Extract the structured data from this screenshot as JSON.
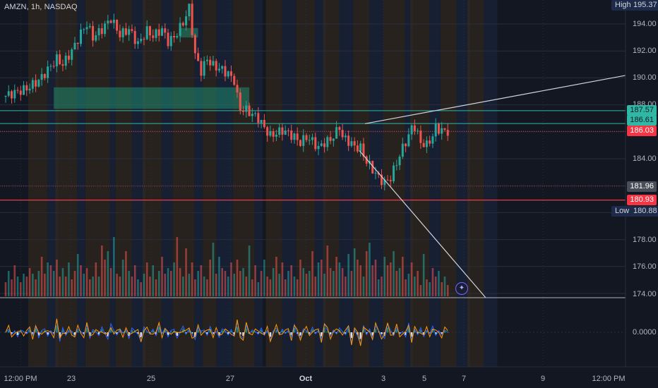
{
  "header": {
    "symbol_line": "AMZN, 1h, NASDAQ"
  },
  "colors": {
    "background": "#131722",
    "up": "#26a69a",
    "down": "#ef5350",
    "session_orange": "#3a2c1c",
    "session_blue": "#1a2540",
    "gridline": "#2a2e39",
    "trendline": "#d1d4dc",
    "hline_teal": "#2fb8a6",
    "hline_red": "#f23645",
    "zone_fill": "#1f8a70",
    "macd_blue": "#2962ff",
    "macd_orange": "#ff9800"
  },
  "price_labels": {
    "high_caption": "High",
    "high_value": "195.37",
    "low_caption": "Low",
    "low_value": "180.88",
    "level_187_57": "187.57",
    "level_186_61": "186.61",
    "last_price": "186.03",
    "level_181_96": "181.96",
    "level_180_93": "180.93"
  },
  "price_axis_ticks": [
    "194.00",
    "192.00",
    "190.00",
    "188.00",
    "184.00",
    "178.00",
    "176.00",
    "174.00"
  ],
  "macd_axis_tick": "0.0000",
  "time_axis_ticks": [
    "12:00 PM",
    "23",
    "25",
    "27",
    "Oct",
    "3",
    "5",
    "7",
    "9",
    "12:00 PM"
  ],
  "chart_data": {
    "type": "candlestick",
    "symbol": "AMZN",
    "interval": "1h",
    "exchange": "NASDAQ",
    "ylim": [
      174,
      196
    ],
    "price_path": [
      [
        0,
        188.6
      ],
      [
        4,
        188.9
      ],
      [
        8,
        189.2
      ],
      [
        12,
        189.8
      ],
      [
        15,
        190.6
      ],
      [
        18,
        191.4
      ],
      [
        20,
        191.0
      ],
      [
        23,
        192.0
      ],
      [
        26,
        193.3
      ],
      [
        28,
        194.0
      ],
      [
        30,
        193.0
      ],
      [
        33,
        193.6
      ],
      [
        36,
        194.4
      ],
      [
        39,
        193.2
      ],
      [
        42,
        193.6
      ],
      [
        45,
        192.5
      ],
      [
        48,
        193.5
      ],
      [
        50,
        193.1
      ],
      [
        53,
        193.6
      ],
      [
        55,
        192.7
      ],
      [
        57,
        193.0
      ],
      [
        60,
        194.1
      ],
      [
        62,
        195.2
      ],
      [
        63,
        193.5
      ],
      [
        64,
        191.7
      ],
      [
        66,
        190.5
      ],
      [
        68,
        191.4
      ],
      [
        70,
        190.9
      ],
      [
        73,
        190.6
      ],
      [
        75,
        190.3
      ],
      [
        77,
        189.8
      ],
      [
        78,
        188.6
      ],
      [
        79,
        187.7
      ],
      [
        81,
        187.6
      ],
      [
        83,
        187.3
      ],
      [
        85,
        187.0
      ],
      [
        87,
        186.3
      ],
      [
        89,
        185.7
      ],
      [
        91,
        185.9
      ],
      [
        93,
        186.1
      ],
      [
        95,
        185.9
      ],
      [
        97,
        185.6
      ],
      [
        99,
        185.2
      ],
      [
        101,
        185.6
      ],
      [
        103,
        185.3
      ],
      [
        105,
        184.8
      ],
      [
        107,
        185.2
      ],
      [
        109,
        185.4
      ],
      [
        111,
        186.0
      ],
      [
        112,
        186.4
      ],
      [
        113,
        185.6
      ],
      [
        115,
        185.3
      ],
      [
        117,
        184.9
      ],
      [
        119,
        184.8
      ],
      [
        121,
        183.8
      ],
      [
        123,
        183.2
      ],
      [
        125,
        182.6
      ],
      [
        127,
        182.2
      ],
      [
        129,
        182.6
      ],
      [
        131,
        183.7
      ],
      [
        133,
        184.8
      ],
      [
        135,
        185.7
      ],
      [
        136,
        186.3
      ],
      [
        137,
        186.4
      ],
      [
        139,
        185.2
      ],
      [
        141,
        185.0
      ],
      [
        143,
        185.7
      ],
      [
        144,
        186.3
      ],
      [
        146,
        186.1
      ],
      [
        147,
        186.03
      ]
    ],
    "session_shading": [
      [
        8,
        0.7
      ],
      [
        17,
        0.8
      ],
      [
        27,
        0.9
      ],
      [
        37,
        0.6
      ],
      [
        46,
        0.7
      ],
      [
        56,
        0.8
      ],
      [
        66,
        0.5
      ],
      [
        76,
        0.8
      ],
      [
        87,
        0.6
      ],
      [
        97,
        0.7
      ],
      [
        106,
        0.6
      ],
      [
        116,
        0.6
      ],
      [
        126,
        0.8
      ],
      [
        135,
        0.7
      ],
      [
        145,
        0.6
      ],
      [
        154,
        0.6
      ]
    ],
    "volume": [
      5,
      9,
      6,
      11,
      7,
      5,
      8,
      7,
      10,
      8,
      6,
      9,
      14,
      8,
      12,
      11,
      9,
      13,
      7,
      10,
      7,
      12,
      6,
      9,
      15,
      11,
      8,
      10,
      6,
      7,
      12,
      7,
      18,
      13,
      16,
      10,
      21,
      8,
      7,
      13,
      16,
      9,
      7,
      11,
      6,
      5,
      8,
      12,
      7,
      11,
      6,
      9,
      14,
      8,
      10,
      9,
      12,
      21,
      10,
      7,
      17,
      8,
      12,
      6,
      9,
      11,
      7,
      6,
      13,
      19,
      8,
      14,
      10,
      9,
      7,
      12,
      8,
      13,
      9,
      10,
      7,
      18,
      6,
      11,
      5,
      9,
      13,
      7,
      6,
      10,
      14,
      8,
      12,
      6,
      9,
      11,
      7,
      6,
      13,
      10,
      8,
      9,
      16,
      7,
      12,
      13,
      8,
      18,
      10,
      9,
      14,
      12,
      10,
      7,
      15,
      9,
      17,
      13,
      11,
      7,
      16,
      19,
      11,
      13,
      6,
      7,
      14,
      11,
      12,
      16,
      9,
      10,
      14,
      6,
      8,
      12,
      7,
      9,
      4,
      15,
      6,
      5,
      10,
      7,
      9,
      5,
      7,
      4
    ],
    "macd": [
      0,
      0.8,
      -0.6,
      0.4,
      -1.2,
      0.6,
      0.2,
      -0.4,
      1.0,
      -0.8,
      1.8,
      -1.4,
      0.5,
      0.9,
      -1.0,
      0.4,
      -0.5,
      3.2,
      -2.4,
      1.2,
      -0.8,
      0.6,
      0.3,
      -1.1,
      0.8,
      0.2,
      -0.6,
      1.9,
      -1.5,
      0.7,
      0.2,
      -0.9,
      1.4,
      -0.3,
      -1.8,
      2.2,
      0.4,
      -0.7,
      0.9,
      -0.2,
      0.6,
      -1.6,
      1.1,
      0.3,
      -0.5,
      -2.2,
      1.4,
      0.2,
      -0.4,
      0.8,
      -0.9,
      2.4,
      -0.3,
      1.0,
      -1.2,
      0.5,
      0.8,
      -1.5,
      0.2,
      1.6,
      -0.5,
      0.9,
      -0.4,
      -1.9,
      1.2,
      0.3,
      0.6,
      -0.8,
      1.5,
      -0.6,
      0.2,
      -1.3,
      0.9,
      0.4,
      -0.7,
      0.7,
      -1.0,
      2.6,
      -0.9,
      -1.6,
      1.8,
      -0.4,
      0.6,
      0.2,
      -0.5,
      1.1,
      -0.8,
      0.5,
      -2.0,
      0.4,
      1.0,
      -0.6,
      0.8,
      -0.3,
      0.5,
      -1.2,
      2.0,
      -0.5,
      -1.4,
      0.9,
      0.4,
      -0.7,
      1.3,
      -0.4,
      0.6,
      -1.8,
      2.2,
      0.4,
      -0.9,
      0.6,
      -0.4,
      1.1,
      0.2,
      -0.6,
      1.8,
      -2.6,
      0.7,
      -1.0,
      -3.0,
      1.8,
      -0.6,
      0.9,
      -1.4,
      1.6,
      0.4,
      -0.7,
      -1.6,
      2.2,
      0.5,
      -0.9,
      1.3,
      -0.5,
      0.2,
      -1.2,
      2.4,
      -2.0,
      0.8,
      -0.6,
      1.2,
      -1.1,
      0.5,
      -0.3,
      1.6,
      -0.8,
      0.4,
      -0.6,
      0.5,
      0.1
    ]
  }
}
